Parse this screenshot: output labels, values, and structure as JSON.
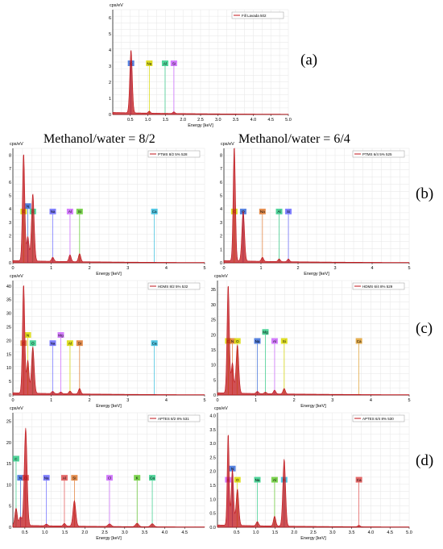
{
  "column_titles": {
    "left": "Methanol/water = 8/2",
    "right": "Methanol/water = 6/4"
  },
  "row_labels": [
    "(a)",
    "(b)",
    "(c)",
    "(d)"
  ],
  "colors": {
    "spectrum": "#c0151b",
    "grid": "#e6e6e6",
    "legend_border": "#999999"
  },
  "chart_data": [
    {
      "type": "line",
      "panel": "a",
      "legend": "Fill Lavada 502",
      "ylabel": "cps/eV",
      "xlabel": "Energy [keV]",
      "xlim": [
        0,
        5
      ],
      "ylim": [
        0,
        6.5
      ],
      "xticks": [
        "0.5",
        "1.0",
        "1.5",
        "2.0",
        "2.5",
        "3.0",
        "3.5",
        "4.0",
        "4.5",
        "5.0"
      ],
      "yticks": [
        "0",
        "1",
        "2",
        "3",
        "4",
        "5",
        "6"
      ],
      "peaks": [
        {
          "x": 0.52,
          "y": 3.9,
          "w": 0.035
        },
        {
          "x": 1.04,
          "y": 0.12,
          "w": 0.03
        },
        {
          "x": 1.74,
          "y": 0.1,
          "w": 0.03
        }
      ],
      "elements": [
        {
          "label": "O",
          "x": 0.52,
          "y": 3.0,
          "color": "#3a6cd9"
        },
        {
          "label": "Na",
          "x": 1.04,
          "y": 3.0,
          "color": "#d9d900"
        },
        {
          "label": "Al",
          "x": 1.49,
          "y": 3.0,
          "color": "#33cc88"
        },
        {
          "label": "Si",
          "x": 1.74,
          "y": 3.0,
          "color": "#cc66ff"
        }
      ]
    },
    {
      "type": "line",
      "panel": "b-left",
      "legend": "PTMS 8/2 5% 528",
      "ylabel": "cps/eV",
      "xlabel": "Energy [keV]",
      "xlim": [
        0,
        5
      ],
      "ylim": [
        0,
        8.5
      ],
      "xticks": [
        "0",
        "1",
        "2",
        "3",
        "4",
        "5"
      ],
      "yticks": [
        "0",
        "1",
        "2",
        "3",
        "4",
        "5",
        "6",
        "7",
        "8"
      ],
      "peaks": [
        {
          "x": 0.28,
          "y": 8.0,
          "w": 0.03
        },
        {
          "x": 0.39,
          "y": 1.8,
          "w": 0.03
        },
        {
          "x": 0.52,
          "y": 5.0,
          "w": 0.035
        },
        {
          "x": 1.04,
          "y": 0.3,
          "w": 0.03
        },
        {
          "x": 1.49,
          "y": 0.5,
          "w": 0.03
        },
        {
          "x": 1.74,
          "y": 0.6,
          "w": 0.03
        }
      ],
      "elements": [
        {
          "label": "C",
          "x": 0.28,
          "y": 3.6,
          "color": "#d9d900"
        },
        {
          "label": "N",
          "x": 0.39,
          "y": 4.0,
          "color": "#3a6cd9"
        },
        {
          "label": "O",
          "x": 0.52,
          "y": 3.6,
          "color": "#33cc88"
        },
        {
          "label": "Na",
          "x": 1.04,
          "y": 3.6,
          "color": "#6a6aff"
        },
        {
          "label": "Al",
          "x": 1.49,
          "y": 3.6,
          "color": "#cc66ff"
        },
        {
          "label": "Si",
          "x": 1.74,
          "y": 3.6,
          "color": "#66cc33"
        },
        {
          "label": "Ca",
          "x": 3.69,
          "y": 3.6,
          "color": "#33bbdd"
        }
      ]
    },
    {
      "type": "line",
      "panel": "b-right",
      "legend": "PTMS 6/4 5% 525",
      "ylabel": "cps/eV",
      "xlabel": "Energy [keV]",
      "xlim": [
        0,
        5
      ],
      "ylim": [
        0,
        8.5
      ],
      "xticks": [
        "0",
        "1",
        "2",
        "3",
        "4",
        "5"
      ],
      "yticks": [
        "0",
        "1",
        "2",
        "3",
        "4",
        "5",
        "6",
        "7",
        "8"
      ],
      "peaks": [
        {
          "x": 0.28,
          "y": 8.5,
          "w": 0.03
        },
        {
          "x": 0.52,
          "y": 3.7,
          "w": 0.035
        },
        {
          "x": 1.04,
          "y": 0.3,
          "w": 0.03
        },
        {
          "x": 1.49,
          "y": 0.2,
          "w": 0.03
        },
        {
          "x": 1.74,
          "y": 0.2,
          "w": 0.03
        }
      ],
      "elements": [
        {
          "label": "C",
          "x": 0.28,
          "y": 3.6,
          "color": "#d9d900"
        },
        {
          "label": "O",
          "x": 0.52,
          "y": 3.6,
          "color": "#3a6cd9"
        },
        {
          "label": "Na",
          "x": 1.04,
          "y": 3.6,
          "color": "#e07a30"
        },
        {
          "label": "Al",
          "x": 1.49,
          "y": 3.6,
          "color": "#33cc88"
        },
        {
          "label": "Si",
          "x": 1.74,
          "y": 3.6,
          "color": "#6a6aff"
        }
      ]
    },
    {
      "type": "line",
      "panel": "c-left",
      "legend": "HDMS 8/2 5% 532",
      "ylabel": "cps/eV",
      "xlabel": "Energy [keV]",
      "xlim": [
        0,
        5
      ],
      "ylim": [
        0,
        42
      ],
      "xticks": [
        "0",
        "1",
        "2",
        "3",
        "4",
        "5"
      ],
      "yticks": [
        "0",
        "5",
        "10",
        "15",
        "20",
        "25",
        "30",
        "35",
        "40"
      ],
      "peaks": [
        {
          "x": 0.28,
          "y": 40,
          "w": 0.03
        },
        {
          "x": 0.39,
          "y": 12,
          "w": 0.03
        },
        {
          "x": 0.52,
          "y": 17,
          "w": 0.035
        },
        {
          "x": 1.04,
          "y": 0.8,
          "w": 0.03
        },
        {
          "x": 1.25,
          "y": 0.6,
          "w": 0.03
        },
        {
          "x": 1.49,
          "y": 1.0,
          "w": 0.03
        },
        {
          "x": 1.74,
          "y": 2.0,
          "w": 0.03
        }
      ],
      "elements": [
        {
          "label": "C",
          "x": 0.28,
          "y": 18,
          "color": "#e07a30"
        },
        {
          "label": "N",
          "x": 0.39,
          "y": 21,
          "color": "#d9d900"
        },
        {
          "label": "O",
          "x": 0.52,
          "y": 18,
          "color": "#33cc88"
        },
        {
          "label": "Na",
          "x": 1.04,
          "y": 18,
          "color": "#6a6aff"
        },
        {
          "label": "Mg",
          "x": 1.25,
          "y": 21,
          "color": "#cc66ff"
        },
        {
          "label": "Al",
          "x": 1.49,
          "y": 18,
          "color": "#d9d900"
        },
        {
          "label": "Si",
          "x": 1.74,
          "y": 18,
          "color": "#e07a30"
        },
        {
          "label": "Ca",
          "x": 3.69,
          "y": 18,
          "color": "#33bbdd"
        }
      ]
    },
    {
      "type": "line",
      "panel": "c-right",
      "legend": "HDMS 6/4 8% 529",
      "ylabel": "cps/eV",
      "xlabel": "Energy [keV]",
      "xlim": [
        0,
        5
      ],
      "ylim": [
        0,
        38
      ],
      "xticks": [
        "0",
        "1",
        "2",
        "3",
        "4",
        "5"
      ],
      "yticks": [
        "0",
        "5",
        "10",
        "15",
        "20",
        "25",
        "30",
        "35"
      ],
      "peaks": [
        {
          "x": 0.28,
          "y": 36,
          "w": 0.03
        },
        {
          "x": 0.39,
          "y": 10,
          "w": 0.03
        },
        {
          "x": 0.52,
          "y": 16,
          "w": 0.035
        },
        {
          "x": 1.04,
          "y": 0.7,
          "w": 0.03
        },
        {
          "x": 1.25,
          "y": 0.5,
          "w": 0.03
        },
        {
          "x": 1.49,
          "y": 1.2,
          "w": 0.03
        },
        {
          "x": 1.74,
          "y": 1.8,
          "w": 0.03
        }
      ],
      "elements": [
        {
          "label": "C",
          "x": 0.28,
          "y": 17,
          "color": "#d9d900"
        },
        {
          "label": "N",
          "x": 0.39,
          "y": 17,
          "color": "#e07a30"
        },
        {
          "label": "O",
          "x": 0.52,
          "y": 17,
          "color": "#d9d900"
        },
        {
          "label": "Na",
          "x": 1.04,
          "y": 17,
          "color": "#3a6cd9"
        },
        {
          "label": "Mg",
          "x": 1.25,
          "y": 20,
          "color": "#33cc88"
        },
        {
          "label": "Al",
          "x": 1.49,
          "y": 17,
          "color": "#cc66ff"
        },
        {
          "label": "Si",
          "x": 1.74,
          "y": 17,
          "color": "#d9d900"
        },
        {
          "label": "Ca",
          "x": 3.69,
          "y": 17,
          "color": "#e0a030"
        }
      ]
    },
    {
      "type": "line",
      "panel": "d-left",
      "legend": "APTES 8/2 8% 531",
      "ylabel": "cps/eV",
      "xlabel": "Energy [keV]",
      "xlim": [
        0.2,
        5.0
      ],
      "ylim": [
        0,
        27
      ],
      "xticks": [
        "0.5",
        "1.0",
        "1.5",
        "2.0",
        "2.5",
        "3.0",
        "3.5",
        "4.0",
        "4.5"
      ],
      "yticks": [
        "0",
        "5",
        "10",
        "15",
        "20",
        "25"
      ],
      "peaks": [
        {
          "x": 0.28,
          "y": 4,
          "w": 0.03
        },
        {
          "x": 0.39,
          "y": 2,
          "w": 0.03
        },
        {
          "x": 0.52,
          "y": 23,
          "w": 0.035
        },
        {
          "x": 1.04,
          "y": 0.4,
          "w": 0.03
        },
        {
          "x": 1.49,
          "y": 0.6,
          "w": 0.03
        },
        {
          "x": 1.74,
          "y": 6,
          "w": 0.035
        },
        {
          "x": 2.62,
          "y": 0.6,
          "w": 0.04
        },
        {
          "x": 3.31,
          "y": 0.8,
          "w": 0.04
        },
        {
          "x": 3.69,
          "y": 0.7,
          "w": 0.04
        }
      ],
      "elements": [
        {
          "label": "C",
          "x": 0.28,
          "y": 15.5,
          "color": "#33cc88"
        },
        {
          "label": "N",
          "x": 0.39,
          "y": 11,
          "color": "#3a6cd9"
        },
        {
          "label": "O",
          "x": 0.52,
          "y": 11,
          "color": "#e05050"
        },
        {
          "label": "Na",
          "x": 1.04,
          "y": 11,
          "color": "#6a6aff"
        },
        {
          "label": "Al",
          "x": 1.49,
          "y": 11,
          "color": "#e05050"
        },
        {
          "label": "Si",
          "x": 1.74,
          "y": 11,
          "color": "#e07a30"
        },
        {
          "label": "Cl",
          "x": 2.62,
          "y": 11,
          "color": "#cc66ff"
        },
        {
          "label": "K",
          "x": 3.31,
          "y": 11,
          "color": "#66cc33"
        },
        {
          "label": "Ca",
          "x": 3.69,
          "y": 11,
          "color": "#33cc88"
        }
      ]
    },
    {
      "type": "line",
      "panel": "d-right",
      "legend": "APTES 6/4 8% 530",
      "ylabel": "cps/eV",
      "xlabel": "Energy [keV]",
      "xlim": [
        0,
        5
      ],
      "ylim": [
        0,
        4.1
      ],
      "xticks": [
        "0.5",
        "1.0",
        "1.5",
        "2.0",
        "2.5",
        "3.0",
        "3.5",
        "4.0",
        "4.5",
        "5.0"
      ],
      "yticks": [
        "0.0",
        "0.5",
        "1.0",
        "1.5",
        "2.0",
        "2.5",
        "3.0",
        "3.5",
        "4.0"
      ],
      "peaks": [
        {
          "x": 0.28,
          "y": 3.3,
          "w": 0.025
        },
        {
          "x": 0.39,
          "y": 2.0,
          "w": 0.03
        },
        {
          "x": 0.52,
          "y": 1.3,
          "w": 0.035
        },
        {
          "x": 1.04,
          "y": 0.15,
          "w": 0.03
        },
        {
          "x": 1.49,
          "y": 0.35,
          "w": 0.03
        },
        {
          "x": 1.74,
          "y": 2.4,
          "w": 0.035
        },
        {
          "x": 3.69,
          "y": 0.05,
          "w": 0.03
        }
      ],
      "elements": [
        {
          "label": "C",
          "x": 0.28,
          "y": 1.6,
          "color": "#cc66ff"
        },
        {
          "label": "N",
          "x": 0.39,
          "y": 2.0,
          "color": "#3a6cd9"
        },
        {
          "label": "O",
          "x": 0.52,
          "y": 1.6,
          "color": "#d9d900"
        },
        {
          "label": "Na",
          "x": 1.04,
          "y": 1.6,
          "color": "#33cc88"
        },
        {
          "label": "Al",
          "x": 1.49,
          "y": 1.6,
          "color": "#66cc33"
        },
        {
          "label": "Si",
          "x": 1.74,
          "y": 1.6,
          "color": "#33bbdd"
        },
        {
          "label": "Ca",
          "x": 3.69,
          "y": 1.6,
          "color": "#e05050"
        }
      ]
    }
  ]
}
